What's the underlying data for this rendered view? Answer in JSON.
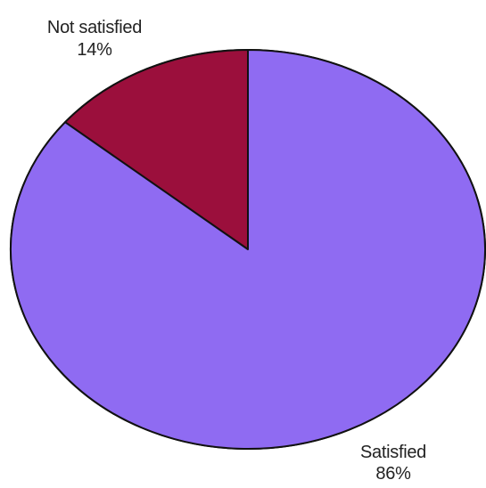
{
  "chart_data": {
    "type": "pie",
    "slices": [
      {
        "label": "Not satisfied",
        "value_text": "14%",
        "value": 14,
        "color": "#9b0f3c"
      },
      {
        "label": "Satisfied",
        "value_text": "86%",
        "value": 86,
        "color": "#8f6bf2"
      }
    ],
    "outline_color": "#111111",
    "start": "top",
    "direction": "counterclockwise"
  }
}
